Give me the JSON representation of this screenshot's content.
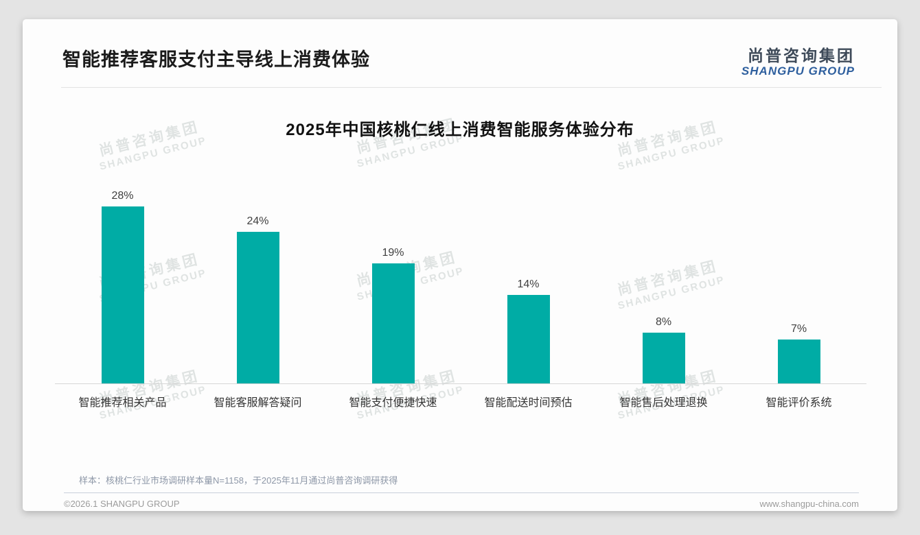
{
  "page": {
    "title": "智能推荐客服支付主导线上消费体验",
    "logo": {
      "cn": "尚普咨询集团",
      "en": "SHANGPU GROUP"
    },
    "watermark": {
      "cn": "尚普咨询集团",
      "en": "SHANGPU GROUP"
    },
    "footnote": "样本：核桃仁行业市场调研样本量N=1158，于2025年11月通过尚普咨询调研获得",
    "footer": {
      "copyright": "©2026.1 SHANGPU GROUP",
      "website": "www.shangpu-china.com"
    },
    "colors": {
      "bar": "#00ACA5",
      "logo_blue": "#2E5F9E",
      "title_text": "#1b1b1b"
    }
  },
  "chart_data": {
    "type": "bar",
    "title": "2025年中国核桃仁线上消费智能服务体验分布",
    "categories": [
      "智能推荐相关产品",
      "智能客服解答疑问",
      "智能支付便捷快速",
      "智能配送时间预估",
      "智能售后处理退换",
      "智能评价系统"
    ],
    "values": [
      28,
      24,
      19,
      14,
      8,
      7
    ],
    "data_labels": [
      "28%",
      "24%",
      "19%",
      "14%",
      "8%",
      "7%"
    ],
    "unit": "%",
    "ylim": [
      0,
      30
    ],
    "bar_color": "#00ACA5",
    "grid": false,
    "legend": false,
    "xlabel": "",
    "ylabel": ""
  }
}
